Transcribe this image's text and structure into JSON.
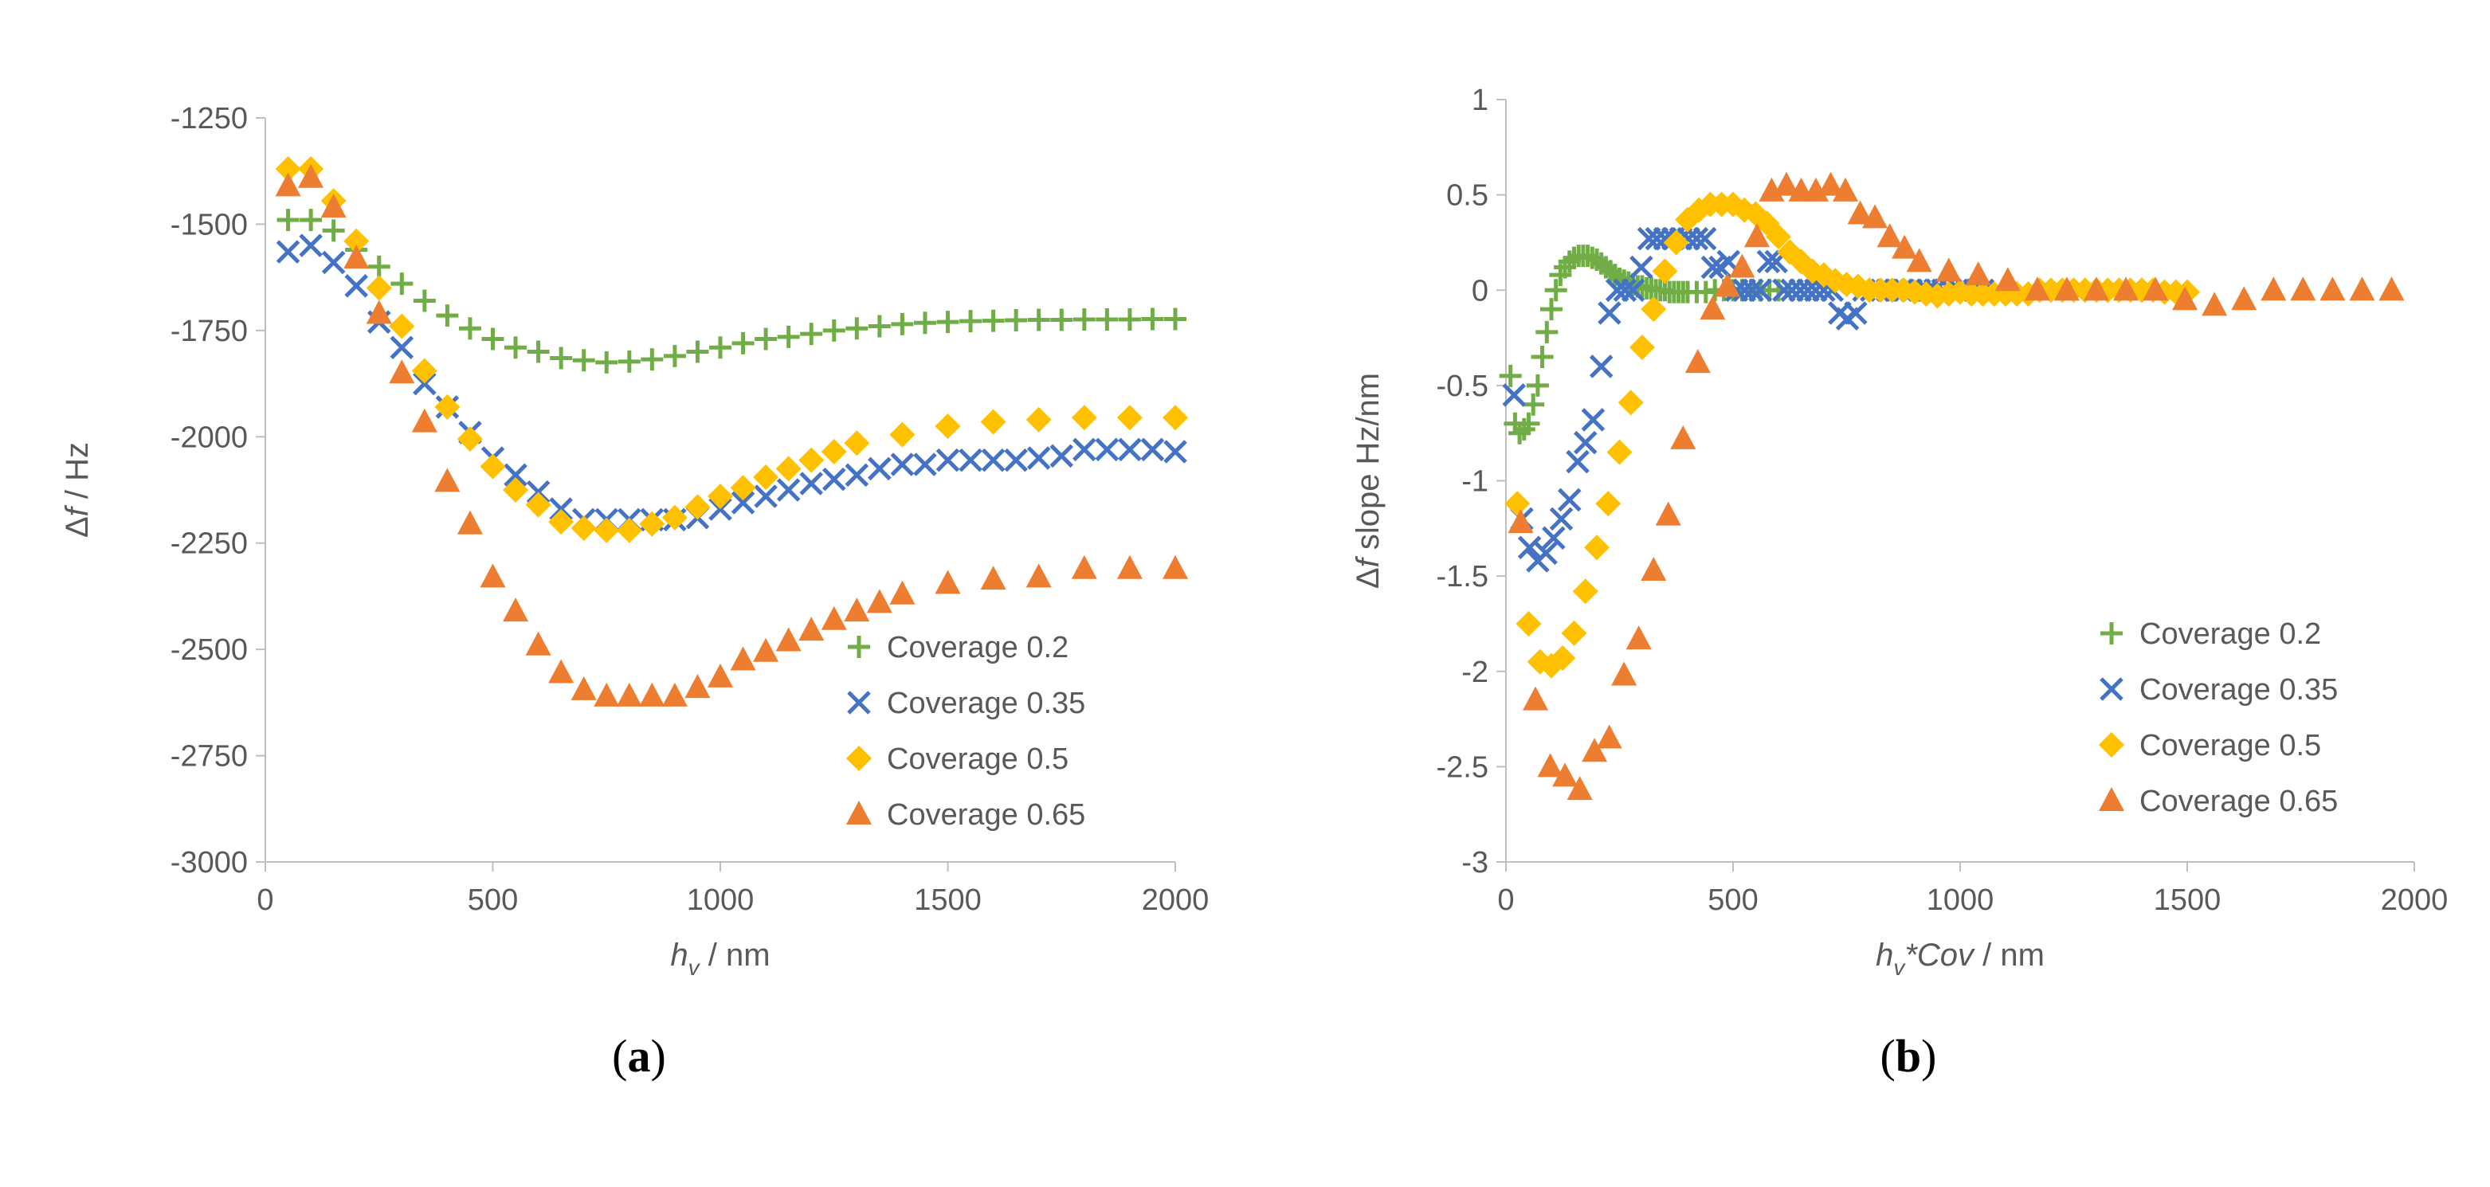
{
  "chart_data": [
    {
      "type": "scatter",
      "panel_label": "a",
      "xlabel": "h_v / nm",
      "xlabel_parts": {
        "var": "h",
        "sub": "v",
        "rest": " / nm"
      },
      "ylabel": "Δf / Hz",
      "ylabel_parts": {
        "delta": "Δ",
        "var": "f",
        "rest": " / Hz"
      },
      "xlim": [
        0,
        2000
      ],
      "ylim": [
        -3000,
        -1250
      ],
      "xticks": [
        0,
        500,
        1000,
        1500,
        2000
      ],
      "yticks": [
        -3000,
        -2750,
        -2500,
        -2250,
        -2000,
        -1750,
        -1500,
        -1250
      ],
      "legend_position": "bottom-right",
      "series": [
        {
          "name": "Coverage 0.2",
          "marker": "plus",
          "color": "#70AD47",
          "x": [
            50,
            100,
            150,
            200,
            250,
            300,
            350,
            400,
            450,
            500,
            550,
            600,
            650,
            700,
            750,
            800,
            850,
            900,
            950,
            1000,
            1050,
            1100,
            1150,
            1200,
            1250,
            1300,
            1350,
            1400,
            1450,
            1500,
            1550,
            1600,
            1650,
            1700,
            1750,
            1800,
            1850,
            1900,
            1950,
            2000
          ],
          "y": [
            -1490,
            -1490,
            -1515,
            -1560,
            -1600,
            -1640,
            -1680,
            -1715,
            -1745,
            -1770,
            -1790,
            -1800,
            -1815,
            -1820,
            -1825,
            -1823,
            -1818,
            -1810,
            -1800,
            -1790,
            -1780,
            -1770,
            -1765,
            -1758,
            -1750,
            -1745,
            -1740,
            -1735,
            -1732,
            -1730,
            -1728,
            -1727,
            -1726,
            -1725,
            -1725,
            -1724,
            -1724,
            -1724,
            -1723,
            -1723
          ]
        },
        {
          "name": "Coverage 0.35",
          "marker": "x",
          "color": "#4472C4",
          "x": [
            50,
            100,
            150,
            200,
            250,
            300,
            350,
            400,
            450,
            500,
            550,
            600,
            650,
            700,
            750,
            800,
            850,
            900,
            950,
            1000,
            1050,
            1100,
            1150,
            1200,
            1250,
            1300,
            1350,
            1400,
            1450,
            1500,
            1550,
            1600,
            1650,
            1700,
            1750,
            1800,
            1850,
            1900,
            1950,
            2000
          ],
          "y": [
            -1565,
            -1550,
            -1590,
            -1645,
            -1730,
            -1790,
            -1875,
            -1930,
            -1990,
            -2050,
            -2090,
            -2130,
            -2170,
            -2195,
            -2195,
            -2195,
            -2195,
            -2195,
            -2190,
            -2170,
            -2155,
            -2140,
            -2125,
            -2110,
            -2100,
            -2090,
            -2075,
            -2065,
            -2065,
            -2055,
            -2055,
            -2055,
            -2055,
            -2050,
            -2045,
            -2030,
            -2030,
            -2030,
            -2030,
            -2035
          ]
        },
        {
          "name": "Coverage 0.5",
          "marker": "diamond",
          "color": "#FFC000",
          "x": [
            50,
            100,
            150,
            200,
            250,
            300,
            350,
            400,
            450,
            500,
            550,
            600,
            650,
            700,
            750,
            800,
            850,
            900,
            950,
            1000,
            1050,
            1100,
            1150,
            1200,
            1250,
            1300,
            1400,
            1500,
            1600,
            1700,
            1800,
            1900,
            2000
          ],
          "y": [
            -1370,
            -1370,
            -1445,
            -1540,
            -1650,
            -1740,
            -1845,
            -1930,
            -2005,
            -2070,
            -2125,
            -2160,
            -2200,
            -2215,
            -2220,
            -2220,
            -2205,
            -2190,
            -2165,
            -2140,
            -2120,
            -2095,
            -2075,
            -2055,
            -2035,
            -2015,
            -1995,
            -1975,
            -1965,
            -1960,
            -1955,
            -1955,
            -1955
          ]
        },
        {
          "name": "Coverage 0.65",
          "marker": "triangle",
          "color": "#ED7D31",
          "x": [
            50,
            100,
            150,
            200,
            250,
            300,
            350,
            400,
            450,
            500,
            550,
            600,
            650,
            700,
            750,
            800,
            850,
            900,
            950,
            1000,
            1050,
            1100,
            1150,
            1200,
            1250,
            1300,
            1350,
            1400,
            1500,
            1600,
            1700,
            1800,
            1900,
            2000
          ],
          "y": [
            -1410,
            -1390,
            -1460,
            -1580,
            -1710,
            -1850,
            -1965,
            -2105,
            -2205,
            -2330,
            -2410,
            -2490,
            -2555,
            -2595,
            -2610,
            -2610,
            -2610,
            -2610,
            -2590,
            -2565,
            -2525,
            -2505,
            -2480,
            -2455,
            -2430,
            -2410,
            -2390,
            -2370,
            -2345,
            -2335,
            -2330,
            -2310,
            -2310,
            -2310
          ]
        }
      ]
    },
    {
      "type": "scatter",
      "panel_label": "b",
      "xlabel": "h_v*Cov / nm",
      "xlabel_parts": {
        "var": "h",
        "sub": "v",
        "ital": "*Cov",
        "rest": " / nm"
      },
      "ylabel": "Δf slope Hz/nm",
      "ylabel_parts": {
        "delta": "Δ",
        "var": "f",
        "rest": " slope Hz/nm"
      },
      "xlim": [
        0,
        2000
      ],
      "ylim": [
        -3,
        1
      ],
      "xticks": [
        0,
        500,
        1000,
        1500,
        2000
      ],
      "yticks": [
        -3,
        -2.5,
        -2,
        -1.5,
        -1,
        -0.5,
        0,
        0.5,
        1
      ],
      "legend_position": "bottom-right",
      "series": [
        {
          "name": "Coverage 0.2",
          "marker": "plus",
          "color": "#70AD47",
          "x": [
            10,
            20,
            30,
            40,
            50,
            60,
            70,
            80,
            90,
            100,
            110,
            120,
            130,
            140,
            150,
            160,
            170,
            180,
            190,
            200,
            210,
            220,
            230,
            240,
            250,
            260,
            270,
            280,
            290,
            300,
            310,
            320,
            330,
            340,
            350,
            360,
            370,
            380,
            390,
            400,
            420,
            440,
            460,
            480,
            500,
            520,
            540,
            560,
            580,
            600
          ],
          "y": [
            -0.45,
            -0.7,
            -0.75,
            -0.73,
            -0.7,
            -0.6,
            -0.5,
            -0.35,
            -0.22,
            -0.1,
            0.0,
            0.08,
            0.12,
            0.15,
            0.17,
            0.18,
            0.18,
            0.18,
            0.17,
            0.16,
            0.14,
            0.12,
            0.1,
            0.08,
            0.06,
            0.05,
            0.04,
            0.03,
            0.02,
            0.02,
            0.01,
            0.01,
            0.0,
            0.0,
            0.0,
            -0.01,
            -0.01,
            -0.01,
            -0.01,
            -0.01,
            -0.01,
            -0.01,
            0.0,
            0.0,
            0.0,
            0.0,
            0.0,
            0.0,
            0.0,
            0.0
          ]
        },
        {
          "name": "Coverage 0.35",
          "marker": "x",
          "color": "#4472C4",
          "x": [
            18,
            35,
            52,
            70,
            88,
            105,
            122,
            140,
            158,
            175,
            192,
            210,
            228,
            245,
            262,
            280,
            298,
            315,
            332,
            350,
            368,
            385,
            402,
            420,
            438,
            455,
            472,
            490,
            508,
            525,
            542,
            560,
            578,
            595,
            612,
            630,
            648,
            665,
            682,
            700,
            718,
            735,
            752,
            770,
            788,
            805,
            822,
            840,
            858,
            875,
            892,
            910,
            928,
            945,
            962,
            980,
            998,
            1015,
            1032,
            1050
          ],
          "y": [
            -0.55,
            -1.2,
            -1.35,
            -1.42,
            -1.38,
            -1.3,
            -1.2,
            -1.1,
            -0.9,
            -0.8,
            -0.68,
            -0.4,
            -0.12,
            0.0,
            0.0,
            0.0,
            0.12,
            0.27,
            0.27,
            0.27,
            0.27,
            0.27,
            0.27,
            0.27,
            0.27,
            0.12,
            0.12,
            0.15,
            0.0,
            0.0,
            0.0,
            0.0,
            0.15,
            0.15,
            0.0,
            0.0,
            0.0,
            0.0,
            0.0,
            0.0,
            0.0,
            -0.12,
            -0.15,
            -0.12,
            0.0,
            0.0,
            0.0,
            0.0,
            0.0,
            0.0,
            0.0,
            0.0,
            0.0,
            0.0,
            0.0,
            0.0,
            0.0,
            0.0,
            0.0,
            0.0
          ]
        },
        {
          "name": "Coverage 0.5",
          "marker": "diamond",
          "color": "#FFC000",
          "x": [
            25,
            50,
            75,
            100,
            125,
            150,
            175,
            200,
            225,
            250,
            275,
            300,
            325,
            350,
            375,
            400,
            425,
            450,
            475,
            500,
            525,
            550,
            575,
            600,
            625,
            650,
            675,
            700,
            725,
            750,
            775,
            800,
            825,
            850,
            875,
            900,
            925,
            950,
            975,
            1000,
            1025,
            1050,
            1075,
            1100,
            1125,
            1150,
            1175,
            1200,
            1225,
            1250,
            1275,
            1300,
            1325,
            1350,
            1375,
            1400,
            1425,
            1450,
            1475,
            1500
          ],
          "y": [
            -1.12,
            -1.75,
            -1.95,
            -1.97,
            -1.93,
            -1.8,
            -1.58,
            -1.35,
            -1.12,
            -0.85,
            -0.59,
            -0.3,
            -0.1,
            0.1,
            0.25,
            0.37,
            0.42,
            0.45,
            0.45,
            0.45,
            0.42,
            0.4,
            0.35,
            0.28,
            0.2,
            0.15,
            0.1,
            0.08,
            0.05,
            0.03,
            0.02,
            0.0,
            0.0,
            0.0,
            0.0,
            -0.01,
            -0.02,
            -0.03,
            -0.02,
            -0.01,
            -0.02,
            -0.02,
            -0.02,
            -0.02,
            -0.02,
            -0.02,
            0.0,
            0.0,
            0.0,
            0.0,
            0.0,
            0.0,
            0.0,
            0.0,
            0.0,
            0.0,
            0.0,
            -0.01,
            -0.01,
            -0.01
          ]
        },
        {
          "name": "Coverage 0.65",
          "marker": "triangle",
          "color": "#ED7D31",
          "x": [
            32.5,
            65,
            97.5,
            130,
            162.5,
            195,
            227.5,
            260,
            292.5,
            325,
            357.5,
            390,
            422.5,
            455,
            487.5,
            520,
            552.5,
            585,
            617.5,
            650,
            682.5,
            715,
            747.5,
            780,
            812.5,
            845,
            877.5,
            910,
            975,
            1040,
            1105,
            1170,
            1235,
            1300,
            1365,
            1430,
            1495,
            1560,
            1625,
            1690,
            1755,
            1820,
            1885,
            1950
          ],
          "y": [
            -1.22,
            -2.15,
            -2.5,
            -2.55,
            -2.62,
            -2.42,
            -2.35,
            -2.02,
            -1.83,
            -1.47,
            -1.18,
            -0.78,
            -0.38,
            -0.1,
            0.02,
            0.12,
            0.28,
            0.52,
            0.55,
            0.52,
            0.52,
            0.55,
            0.52,
            0.4,
            0.38,
            0.28,
            0.22,
            0.15,
            0.1,
            0.08,
            0.05,
            0.0,
            0.0,
            0.0,
            0.0,
            0.0,
            -0.05,
            -0.08,
            -0.05,
            0.0,
            0.0,
            0.0,
            0.0,
            0.0
          ]
        }
      ]
    }
  ]
}
